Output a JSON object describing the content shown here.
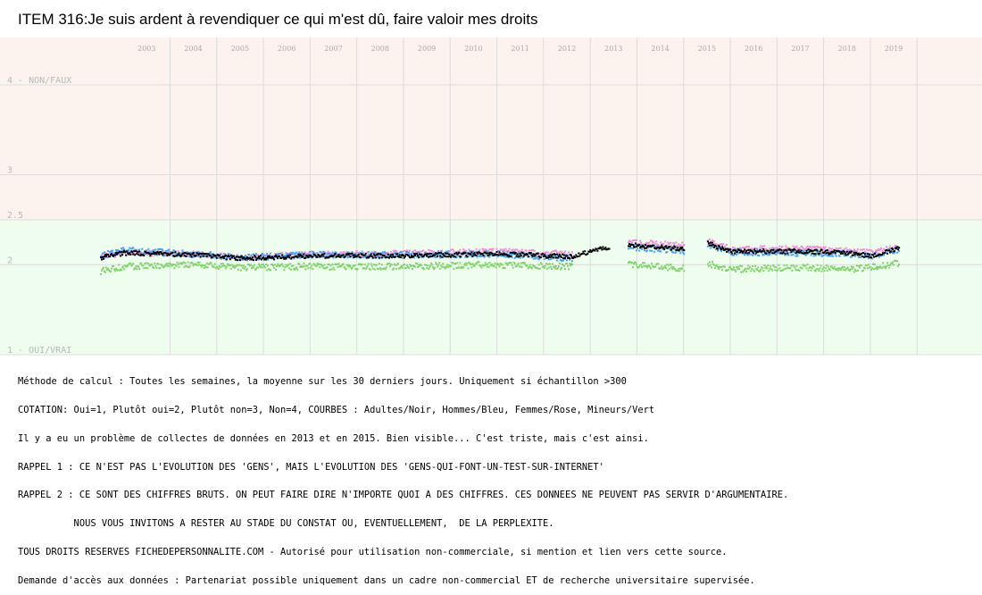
{
  "title": "ITEM 316:Je suis ardent à revendiquer ce qui m'est dû, faire valoir mes droits",
  "colors": {
    "band_top": "#fdf3ee",
    "band_bottom": "#effdef",
    "grid": "#dcdcdc",
    "year_text": "#aaaaaa",
    "ylabel_text": "#b8b8b8",
    "adultes": "#000000",
    "hommes": "#4a9ff0",
    "femmes": "#f08cd8",
    "mineurs": "#7ed36a"
  },
  "notes": [
    "Méthode de calcul : Toutes les semaines, la moyenne sur les 30 derniers jours. Uniquement si échantillon >300",
    "COTATION: Oui=1, Plutôt oui=2, Plutôt non=3, Non=4, COURBES : Adultes/Noir, Hommes/Bleu, Femmes/Rose, Mineurs/Vert",
    "Il y a eu un problème de collectes de données en 2013 et en 2015. Bien visible... C'est triste, mais c'est ainsi.",
    "RAPPEL 1 : CE N'EST PAS L'EVOLUTION DES 'GENS', MAIS L'EVOLUTION DES 'GENS-QUI-FONT-UN-TEST-SUR-INTERNET'",
    "RAPPEL 2 : CE SONT DES CHIFFRES BRUTS. ON PEUT FAIRE DIRE N'IMPORTE QUOI A DES CHIFFRES. CES DONNEES NE PEUVENT PAS SERVIR D'ARGUMENTAIRE.",
    "          NOUS VOUS INVITONS A RESTER AU STADE DU CONSTAT OU, EVENTUELLEMENT,  DE LA PERPLEXITE.",
    "TOUS DROITS RESERVES FICHEDEPERSONNALITE.COM - Autorisé pour utilisation non-commerciale, si mention et lien vers cette source.",
    "Demande d'accès aux données : Partenariat possible uniquement dans un cadre non-commercial ET de recherche universitaire supervisée."
  ],
  "chart_data": {
    "type": "scatter",
    "title": "ITEM 316:Je suis ardent à revendiquer ce qui m'est dû, faire valoir mes droits",
    "xlim": [
      2002.5,
      2020.0
    ],
    "ylim": [
      1,
      4
    ],
    "x_ticks": [
      "2003",
      "2004",
      "2005",
      "2006",
      "2007",
      "2008",
      "2009",
      "2010",
      "2011",
      "2012",
      "2013",
      "2014",
      "2015",
      "2016",
      "2017",
      "2018",
      "2019"
    ],
    "y_ticks": [
      {
        "value": 4,
        "label": "4 - NON/FAUX"
      },
      {
        "value": 3,
        "label": "3"
      },
      {
        "value": 2.5,
        "label": "2.5"
      },
      {
        "value": 2,
        "label": "2"
      },
      {
        "value": 1,
        "label": "1 - OUI/VRAI"
      }
    ],
    "band_split": 2.5,
    "grid": true,
    "legend": "none",
    "segments": [
      {
        "start": 2002.5,
        "end": 2012.6,
        "has_groups": true
      },
      {
        "start": 2012.6,
        "end": 2013.4,
        "has_groups": false
      },
      {
        "start": 2013.8,
        "end": 2015.0,
        "has_groups": true
      },
      {
        "start": 2015.5,
        "end": 2019.6,
        "has_groups": true
      }
    ],
    "series": [
      {
        "name": "Adultes",
        "color": "#000000",
        "keypoints": [
          [
            2002.5,
            2.08
          ],
          [
            2003.0,
            2.13
          ],
          [
            2004.5,
            2.11
          ],
          [
            2005.5,
            2.07
          ],
          [
            2007.0,
            2.1
          ],
          [
            2009.0,
            2.1
          ],
          [
            2011.0,
            2.12
          ],
          [
            2012.6,
            2.09
          ],
          [
            2013.4,
            2.2
          ],
          [
            2013.8,
            2.22
          ],
          [
            2015.0,
            2.18
          ],
          [
            2015.5,
            2.24
          ],
          [
            2016.0,
            2.15
          ],
          [
            2017.5,
            2.15
          ],
          [
            2018.5,
            2.13
          ],
          [
            2019.0,
            2.1
          ],
          [
            2019.6,
            2.18
          ]
        ]
      },
      {
        "name": "Hommes",
        "color": "#4a9ff0",
        "keypoints": [
          [
            2002.5,
            2.1
          ],
          [
            2003.0,
            2.16
          ],
          [
            2004.5,
            2.12
          ],
          [
            2005.5,
            2.08
          ],
          [
            2007.0,
            2.11
          ],
          [
            2009.0,
            2.11
          ],
          [
            2011.0,
            2.12
          ],
          [
            2012.6,
            2.07
          ],
          [
            2013.8,
            2.2
          ],
          [
            2015.0,
            2.15
          ],
          [
            2015.5,
            2.22
          ],
          [
            2016.0,
            2.14
          ],
          [
            2017.5,
            2.13
          ],
          [
            2018.5,
            2.12
          ],
          [
            2019.0,
            2.1
          ],
          [
            2019.6,
            2.17
          ]
        ]
      },
      {
        "name": "Femmes",
        "color": "#f08cd8",
        "keypoints": [
          [
            2002.5,
            2.09
          ],
          [
            2003.0,
            2.13
          ],
          [
            2004.5,
            2.12
          ],
          [
            2005.5,
            2.08
          ],
          [
            2007.0,
            2.12
          ],
          [
            2009.0,
            2.13
          ],
          [
            2011.0,
            2.15
          ],
          [
            2012.6,
            2.12
          ],
          [
            2013.8,
            2.25
          ],
          [
            2015.0,
            2.22
          ],
          [
            2015.5,
            2.26
          ],
          [
            2016.0,
            2.18
          ],
          [
            2017.5,
            2.18
          ],
          [
            2018.5,
            2.16
          ],
          [
            2019.0,
            2.14
          ],
          [
            2019.6,
            2.2
          ]
        ]
      },
      {
        "name": "Mineurs",
        "color": "#7ed36a",
        "keypoints": [
          [
            2002.5,
            1.93
          ],
          [
            2003.0,
            1.98
          ],
          [
            2004.5,
            2.0
          ],
          [
            2005.5,
            1.97
          ],
          [
            2007.0,
            1.98
          ],
          [
            2009.0,
            1.98
          ],
          [
            2011.0,
            2.0
          ],
          [
            2012.6,
            1.98
          ],
          [
            2013.8,
            2.0
          ],
          [
            2015.0,
            1.96
          ],
          [
            2015.5,
            2.01
          ],
          [
            2016.0,
            1.95
          ],
          [
            2017.5,
            1.97
          ],
          [
            2018.5,
            1.95
          ],
          [
            2019.0,
            1.97
          ],
          [
            2019.6,
            2.02
          ]
        ]
      }
    ]
  }
}
